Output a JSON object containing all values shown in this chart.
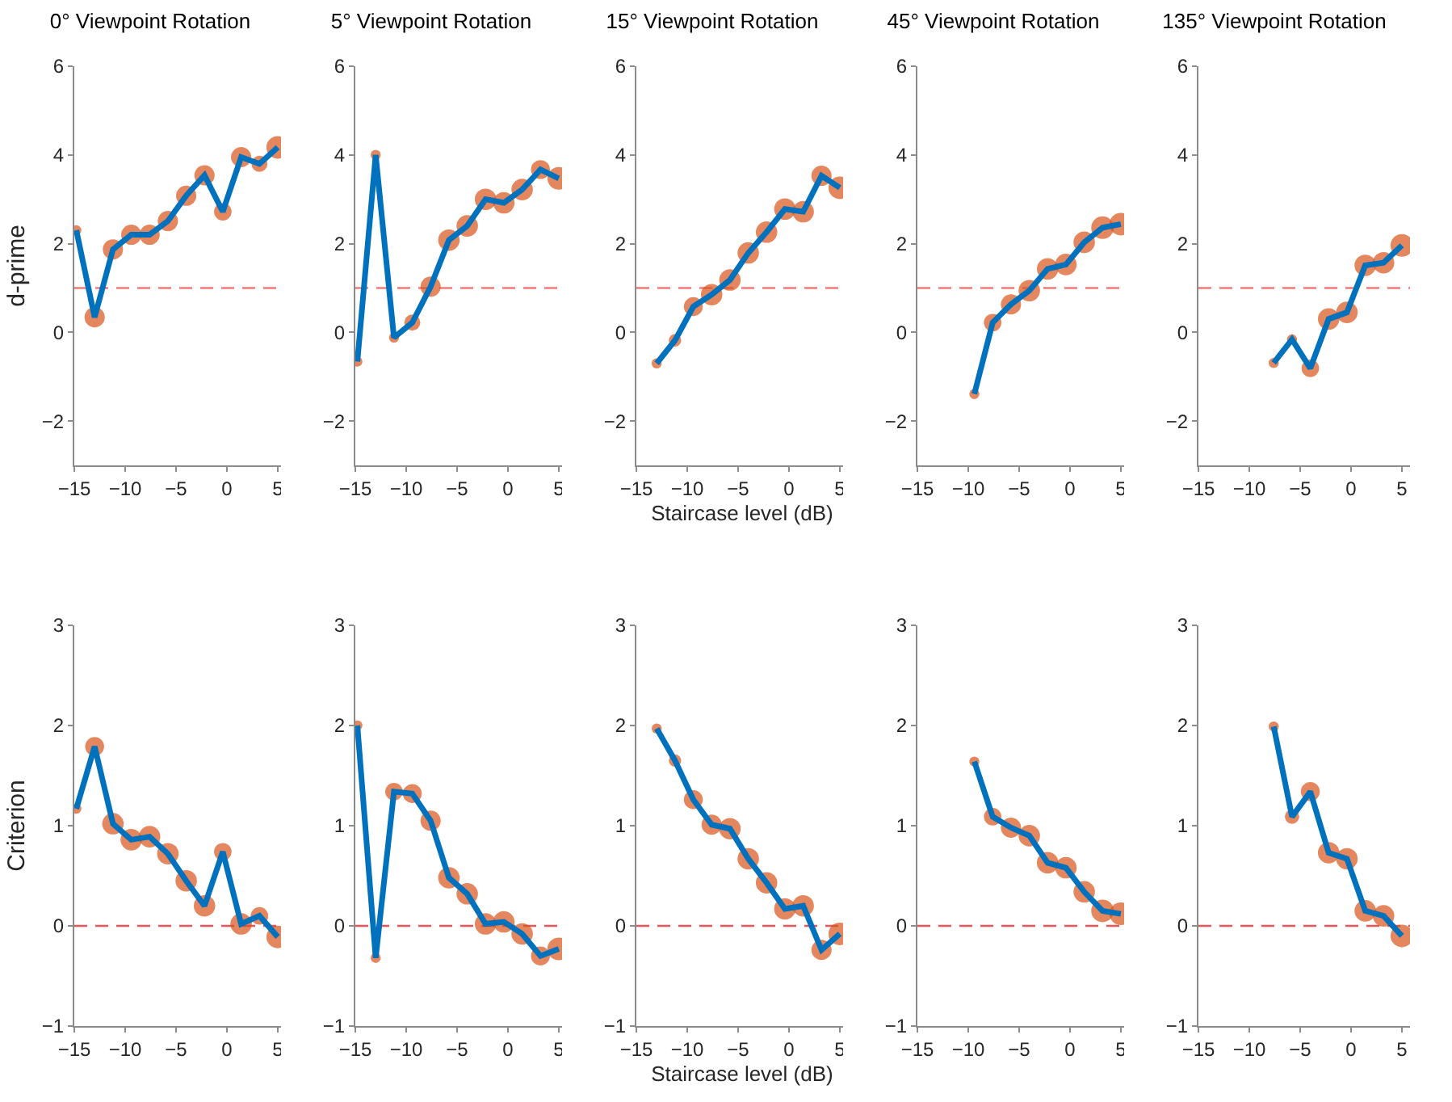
{
  "chart_data": [
    {
      "type": "line",
      "title": "0° Viewpoint Rotation",
      "ylabel": "d-prime",
      "x": [
        -14.8,
        -13,
        -11.2,
        -9.4,
        -7.6,
        -5.8,
        -4,
        -2.2,
        -0.4,
        1.4,
        3.2,
        5
      ],
      "xlim": [
        -15,
        5.8
      ],
      "xticks": [
        -15,
        -10,
        -5,
        0,
        5
      ],
      "ylim": [
        -3,
        6
      ],
      "yticks": [
        -2,
        0,
        2,
        4,
        6
      ],
      "series": [
        {
          "type": "bubble",
          "color": "#d95319",
          "values": [
            2.3,
            0.34,
            1.87,
            2.2,
            2.2,
            2.51,
            3.08,
            3.54,
            2.72,
            3.95,
            3.8,
            4.17
          ],
          "sizes": [
            0.2,
            0.8,
            0.8,
            0.8,
            0.8,
            0.8,
            0.8,
            0.8,
            0.6,
            0.8,
            0.5,
            1
          ]
        },
        {
          "color": "#0072bd",
          "values": [
            2.3,
            0.34,
            1.87,
            2.2,
            2.2,
            2.51,
            3.08,
            3.54,
            2.72,
            3.95,
            3.8,
            4.17
          ]
        }
      ],
      "ref_lines": [
        {
          "axis": "y",
          "value": 1,
          "color": "#f47a7a",
          "line_style": "dashed"
        }
      ]
    },
    {
      "type": "line",
      "title": "5° Viewpoint Rotation",
      "x": [
        -14.8,
        -13,
        -11.2,
        -9.4,
        -7.6,
        -5.8,
        -4,
        -2.2,
        -0.4,
        1.4,
        3.2,
        5
      ],
      "xlim": [
        -15,
        5.8
      ],
      "xticks": [
        -15,
        -10,
        -5,
        0,
        5
      ],
      "ylim": [
        -3,
        6
      ],
      "yticks": [
        -2,
        0,
        2,
        4,
        6
      ],
      "series": [
        {
          "type": "bubble",
          "color": "#d95319",
          "values": [
            -0.66,
            4.0,
            -0.12,
            0.22,
            1.03,
            2.08,
            2.4,
            3.0,
            2.92,
            3.22,
            3.67,
            3.47
          ],
          "sizes": [
            0.2,
            0.2,
            0.2,
            0.5,
            0.8,
            0.9,
            0.9,
            0.9,
            0.9,
            0.9,
            0.7,
            1
          ]
        },
        {
          "color": "#0072bd",
          "values": [
            -0.66,
            4.0,
            -0.12,
            0.22,
            1.03,
            2.08,
            2.4,
            3.0,
            2.92,
            3.22,
            3.67,
            3.47
          ]
        }
      ],
      "ref_lines": [
        {
          "axis": "y",
          "value": 1,
          "color": "#f47a7a",
          "line_style": "dashed"
        }
      ]
    },
    {
      "type": "line",
      "title": "15° Viewpoint Rotation",
      "xlabel": "Staircase level (dB)",
      "x": [
        -13,
        -11.2,
        -9.4,
        -7.6,
        -5.8,
        -4,
        -2.2,
        -0.4,
        1.4,
        3.2,
        5
      ],
      "xlim": [
        -15,
        5.8
      ],
      "xticks": [
        -15,
        -10,
        -5,
        0,
        5
      ],
      "ylim": [
        -3,
        6
      ],
      "yticks": [
        -2,
        0,
        2,
        4,
        6
      ],
      "series": [
        {
          "type": "bubble",
          "color": "#d95319",
          "values": [
            -0.7,
            -0.18,
            0.58,
            0.85,
            1.18,
            1.79,
            2.26,
            2.78,
            2.72,
            3.53,
            3.26
          ],
          "sizes": [
            0.2,
            0.3,
            0.7,
            0.9,
            0.9,
            0.9,
            0.9,
            0.9,
            0.9,
            0.8,
            1
          ]
        },
        {
          "color": "#0072bd",
          "values": [
            -0.7,
            -0.18,
            0.58,
            0.85,
            1.18,
            1.79,
            2.26,
            2.78,
            2.72,
            3.53,
            3.26
          ]
        }
      ],
      "ref_lines": [
        {
          "axis": "y",
          "value": 1,
          "color": "#f47a7a",
          "line_style": "dashed"
        }
      ]
    },
    {
      "type": "line",
      "title": "45° Viewpoint Rotation",
      "x": [
        -9.4,
        -7.6,
        -5.8,
        -4,
        -2.2,
        -0.4,
        1.4,
        3.2,
        5
      ],
      "xlim": [
        -15,
        5.8
      ],
      "xticks": [
        -15,
        -10,
        -5,
        0,
        5
      ],
      "ylim": [
        -3,
        6
      ],
      "yticks": [
        -2,
        0,
        2,
        4,
        6
      ],
      "series": [
        {
          "type": "bubble",
          "color": "#d95319",
          "values": [
            -1.39,
            0.22,
            0.63,
            0.94,
            1.43,
            1.53,
            2.03,
            2.36,
            2.44
          ],
          "sizes": [
            0.2,
            0.6,
            0.8,
            0.9,
            0.9,
            0.9,
            0.9,
            1,
            1
          ]
        },
        {
          "color": "#0072bd",
          "values": [
            -1.39,
            0.22,
            0.63,
            0.94,
            1.43,
            1.53,
            2.03,
            2.36,
            2.44
          ]
        }
      ],
      "ref_lines": [
        {
          "axis": "y",
          "value": 1,
          "color": "#f47a7a",
          "line_style": "dashed"
        }
      ]
    },
    {
      "type": "line",
      "title": "135° Viewpoint Rotation",
      "x": [
        -7.6,
        -5.8,
        -4,
        -2.2,
        -0.4,
        1.4,
        3.2,
        5
      ],
      "xlim": [
        -15,
        5.8
      ],
      "xticks": [
        -15,
        -10,
        -5,
        0,
        5
      ],
      "ylim": [
        -3,
        6
      ],
      "yticks": [
        -2,
        0,
        2,
        4,
        6
      ],
      "series": [
        {
          "type": "bubble",
          "color": "#d95319",
          "values": [
            -0.69,
            -0.16,
            -0.81,
            0.3,
            0.45,
            1.51,
            1.57,
            1.96
          ],
          "sizes": [
            0.2,
            0.2,
            0.6,
            0.9,
            0.9,
            0.9,
            0.9,
            1
          ]
        },
        {
          "color": "#0072bd",
          "values": [
            -0.69,
            -0.16,
            -0.81,
            0.3,
            0.45,
            1.51,
            1.57,
            1.96
          ]
        }
      ],
      "ref_lines": [
        {
          "axis": "y",
          "value": 1,
          "color": "#f47a7a",
          "line_style": "dashed"
        }
      ]
    },
    {
      "type": "line",
      "ylabel": "Criterion",
      "x": [
        -14.8,
        -13,
        -11.2,
        -9.4,
        -7.6,
        -5.8,
        -4,
        -2.2,
        -0.4,
        1.4,
        3.2,
        5
      ],
      "xlim": [
        -15,
        5.8
      ],
      "xticks": [
        -15,
        -10,
        -5,
        0,
        5
      ],
      "ylim": [
        -1,
        3
      ],
      "yticks": [
        -1,
        0,
        1,
        2,
        3
      ],
      "series": [
        {
          "type": "bubble",
          "color": "#d95319",
          "values": [
            1.17,
            1.79,
            1.02,
            0.86,
            0.89,
            0.72,
            0.45,
            0.2,
            0.74,
            0.02,
            0.1,
            -0.11
          ],
          "sizes": [
            0.2,
            0.7,
            0.9,
            0.9,
            0.9,
            0.9,
            0.9,
            0.9,
            0.6,
            0.9,
            0.6,
            1
          ]
        },
        {
          "color": "#0072bd",
          "values": [
            1.17,
            1.79,
            1.02,
            0.86,
            0.89,
            0.72,
            0.45,
            0.2,
            0.74,
            0.02,
            0.1,
            -0.11
          ]
        }
      ],
      "ref_lines": [
        {
          "axis": "y",
          "value": 0,
          "color": "#e8555a",
          "line_style": "dashed"
        }
      ]
    },
    {
      "type": "line",
      "x": [
        -14.8,
        -13,
        -11.2,
        -9.4,
        -7.6,
        -5.8,
        -4,
        -2.2,
        -0.4,
        1.4,
        3.2,
        5
      ],
      "xlim": [
        -15,
        5.8
      ],
      "xticks": [
        -15,
        -10,
        -5,
        0,
        5
      ],
      "ylim": [
        -1,
        3
      ],
      "yticks": [
        -1,
        0,
        1,
        2,
        3
      ],
      "series": [
        {
          "type": "bubble",
          "color": "#d95319",
          "values": [
            2.0,
            -0.32,
            1.34,
            1.32,
            1.05,
            0.48,
            0.32,
            0.02,
            0.04,
            -0.08,
            -0.3,
            -0.23
          ],
          "sizes": [
            0.2,
            0.2,
            0.6,
            0.7,
            0.8,
            0.9,
            0.9,
            0.9,
            0.9,
            0.9,
            0.7,
            1
          ]
        },
        {
          "color": "#0072bd",
          "values": [
            2.0,
            -0.32,
            1.34,
            1.32,
            1.05,
            0.48,
            0.32,
            0.02,
            0.04,
            -0.08,
            -0.3,
            -0.23
          ]
        }
      ],
      "ref_lines": [
        {
          "axis": "y",
          "value": 0,
          "color": "#e8555a",
          "line_style": "dashed"
        }
      ]
    },
    {
      "type": "line",
      "xlabel": "Staircase level (dB)",
      "x": [
        -13,
        -11.2,
        -9.4,
        -7.6,
        -5.8,
        -4,
        -2.2,
        -0.4,
        1.4,
        3.2,
        5
      ],
      "xlim": [
        -15,
        5.8
      ],
      "xticks": [
        -15,
        -10,
        -5,
        0,
        5
      ],
      "ylim": [
        -1,
        3
      ],
      "yticks": [
        -1,
        0,
        1,
        2,
        3
      ],
      "series": [
        {
          "type": "bubble",
          "color": "#d95319",
          "values": [
            1.97,
            1.65,
            1.26,
            1.01,
            0.97,
            0.67,
            0.43,
            0.17,
            0.2,
            -0.24,
            -0.08
          ],
          "sizes": [
            0.2,
            0.3,
            0.7,
            0.8,
            0.9,
            0.9,
            0.9,
            0.9,
            0.9,
            0.8,
            1
          ]
        },
        {
          "color": "#0072bd",
          "values": [
            1.97,
            1.65,
            1.26,
            1.01,
            0.97,
            0.67,
            0.43,
            0.17,
            0.2,
            -0.24,
            -0.08
          ]
        }
      ],
      "ref_lines": [
        {
          "axis": "y",
          "value": 0,
          "color": "#e8555a",
          "line_style": "dashed"
        }
      ]
    },
    {
      "type": "line",
      "x": [
        -9.4,
        -7.6,
        -5.8,
        -4,
        -2.2,
        -0.4,
        1.4,
        3.2,
        5
      ],
      "xlim": [
        -15,
        5.8
      ],
      "xticks": [
        -15,
        -10,
        -5,
        0,
        5
      ],
      "ylim": [
        -1,
        3
      ],
      "yticks": [
        -1,
        0,
        1,
        2,
        3
      ],
      "series": [
        {
          "type": "bubble",
          "color": "#d95319",
          "values": [
            1.64,
            1.09,
            0.98,
            0.9,
            0.63,
            0.58,
            0.34,
            0.15,
            0.12
          ],
          "sizes": [
            0.2,
            0.6,
            0.8,
            0.9,
            0.9,
            0.9,
            0.9,
            1,
            1
          ]
        },
        {
          "color": "#0072bd",
          "values": [
            1.64,
            1.09,
            0.98,
            0.9,
            0.63,
            0.58,
            0.34,
            0.15,
            0.12
          ]
        }
      ],
      "ref_lines": [
        {
          "axis": "y",
          "value": 0,
          "color": "#e8555a",
          "line_style": "dashed"
        }
      ]
    },
    {
      "type": "line",
      "x": [
        -7.6,
        -5.8,
        -4,
        -2.2,
        -0.4,
        1.4,
        3.2,
        5
      ],
      "xlim": [
        -15,
        5.8
      ],
      "xticks": [
        -15,
        -10,
        -5,
        0,
        5
      ],
      "ylim": [
        -1,
        3
      ],
      "yticks": [
        -1,
        0,
        1,
        2,
        3
      ],
      "series": [
        {
          "type": "bubble",
          "color": "#d95319",
          "values": [
            1.99,
            1.09,
            1.34,
            0.73,
            0.67,
            0.15,
            0.1,
            -0.1
          ],
          "sizes": [
            0.2,
            0.4,
            0.7,
            0.9,
            0.9,
            0.9,
            0.9,
            1
          ]
        },
        {
          "color": "#0072bd",
          "values": [
            1.99,
            1.09,
            1.34,
            0.73,
            0.67,
            0.15,
            0.1,
            -0.1
          ]
        }
      ],
      "ref_lines": [
        {
          "axis": "y",
          "value": 0,
          "color": "#e8555a",
          "line_style": "dashed"
        }
      ]
    }
  ]
}
